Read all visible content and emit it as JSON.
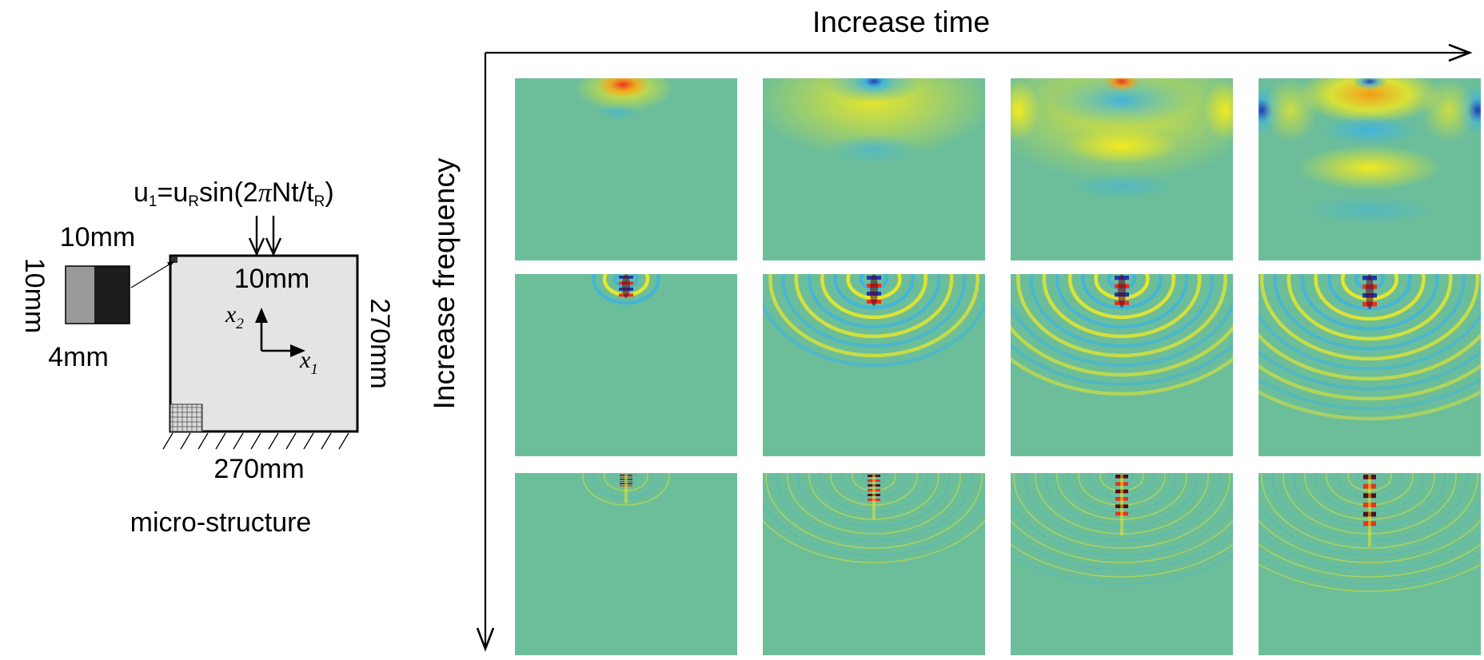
{
  "axes": {
    "time_label": "Increase time",
    "frequency_label": "Increase frequency"
  },
  "schematic": {
    "caption": "micro-structure",
    "load_equation": {
      "u": "u",
      "sub1": "1",
      "eq": "=u",
      "subR": "R",
      "sin": "sin(2",
      "pi": "π",
      "nt": "Nt/t",
      "subR2": "R",
      "close": ")"
    },
    "load_width": "10mm",
    "domain_height": "270mm",
    "domain_width": "270mm",
    "cell_width": "10mm",
    "cell_height": "10mm",
    "inclusion_width": "4mm",
    "axis_x1": {
      "var": "x",
      "sub": "1"
    },
    "axis_x2": {
      "var": "x",
      "sub": "2"
    }
  },
  "colors": {
    "background_field": "#6cbe9a",
    "domain_fill": "#e3e4e6",
    "cell_matrix": "#9a9a9c",
    "cell_inclusion": "#1e1c1d",
    "red": "#e8321e",
    "orange": "#f39a1a",
    "yellow": "#f2ea20",
    "cyan": "#41b4dc",
    "blue": "#1c38b4",
    "maroon": "#5a0a1a"
  },
  "grid": {
    "rows": 3,
    "cols": 4,
    "rows_meaning": "frequency",
    "cols_meaning": "time"
  }
}
